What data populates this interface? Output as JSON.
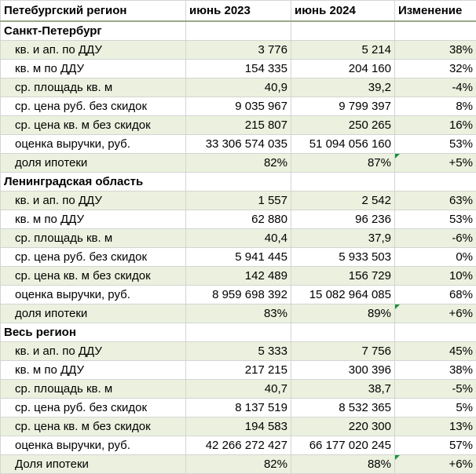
{
  "header": {
    "col1": "Петебургский регион",
    "col2": "июнь 2023",
    "col3": "июнь 2024",
    "col4": "Изменение"
  },
  "sections": [
    {
      "title": "Санкт-Петербург",
      "rows": [
        {
          "label": "кв. и ап. по ДДУ",
          "v2023": "3 776",
          "v2024": "5 214",
          "change": "38%"
        },
        {
          "label": "кв. м по ДДУ",
          "v2023": "154 335",
          "v2024": "204 160",
          "change": "32%"
        },
        {
          "label": "ср. площадь кв. м",
          "v2023": "40,9",
          "v2024": "39,2",
          "change": "-4%"
        },
        {
          "label": "ср. цена руб. без скидок",
          "v2023": "9 035 967",
          "v2024": "9 799 397",
          "change": "8%"
        },
        {
          "label": "ср. цена кв. м без скидок",
          "v2023": "215 807",
          "v2024": "250 265",
          "change": "16%"
        },
        {
          "label": "оценка выручки, руб.",
          "v2023": "33 306 574 035",
          "v2024": "51 094 056 160",
          "change": "53%"
        },
        {
          "label": "доля ипотеки",
          "v2023": "82%",
          "v2024": "87%",
          "change": "+5%",
          "flag": true
        }
      ]
    },
    {
      "title": "Ленинградская область",
      "rows": [
        {
          "label": "кв. и ап. по ДДУ",
          "v2023": "1 557",
          "v2024": "2 542",
          "change": "63%"
        },
        {
          "label": "кв. м по ДДУ",
          "v2023": "62 880",
          "v2024": "96 236",
          "change": "53%"
        },
        {
          "label": "ср. площадь кв. м",
          "v2023": "40,4",
          "v2024": "37,9",
          "change": "-6%"
        },
        {
          "label": "ср. цена руб. без скидок",
          "v2023": "5 941 445",
          "v2024": "5 933 503",
          "change": "0%"
        },
        {
          "label": "ср. цена кв. м без скидок",
          "v2023": "142 489",
          "v2024": "156 729",
          "change": "10%"
        },
        {
          "label": "оценка выручки, руб.",
          "v2023": "8 959 698 392",
          "v2024": "15 082 964 085",
          "change": "68%"
        },
        {
          "label": "доля ипотеки",
          "v2023": "83%",
          "v2024": "89%",
          "change": "+6%",
          "flag": true
        }
      ]
    },
    {
      "title": "Весь регион",
      "rows": [
        {
          "label": "кв. и ап. по ДДУ",
          "v2023": "5 333",
          "v2024": "7 756",
          "change": "45%"
        },
        {
          "label": "кв. м по ДДУ",
          "v2023": "217 215",
          "v2024": "300 396",
          "change": "38%"
        },
        {
          "label": "ср. площадь кв. м",
          "v2023": "40,7",
          "v2024": "38,7",
          "change": "-5%"
        },
        {
          "label": "ср. цена руб. без скидок",
          "v2023": "8 137 519",
          "v2024": "8 532 365",
          "change": "5%"
        },
        {
          "label": "ср. цена кв. м без скидок",
          "v2023": "194 583",
          "v2024": "220 300",
          "change": "13%"
        },
        {
          "label": "оценка выручки, руб.",
          "v2023": "42 266 272 427",
          "v2024": "66 177 020 245",
          "change": "57%"
        },
        {
          "label": "Доля ипотеки",
          "v2023": "82%",
          "v2024": "88%",
          "change": "+6%",
          "flag": true
        }
      ]
    }
  ],
  "colors": {
    "band_green": "#ebf1de",
    "grid": "#d4d4d4",
    "comment_flag": "#1a8f3a"
  }
}
